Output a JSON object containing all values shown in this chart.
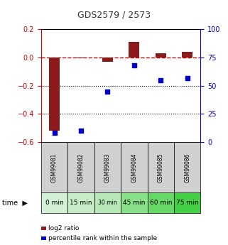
{
  "title": "GDS2579 / 2573",
  "samples": [
    "GSM99081",
    "GSM99082",
    "GSM99083",
    "GSM99084",
    "GSM99085",
    "GSM99086"
  ],
  "time_labels": [
    "0 min",
    "15 min",
    "30 min",
    "45 min",
    "60 min",
    "75 min"
  ],
  "log2_ratios": [
    -0.52,
    -0.005,
    -0.03,
    0.11,
    0.03,
    0.04
  ],
  "percentile_ranks": [
    8,
    10,
    45,
    68,
    55,
    57
  ],
  "ylim_left": [
    -0.6,
    0.2
  ],
  "ylim_right": [
    0,
    100
  ],
  "bar_color": "#8B1A1A",
  "dot_color": "#0000CD",
  "zero_line_color": "#CC0000",
  "grid_color": "black",
  "sample_bg_color": "#d0d0d0",
  "title_color": "#333333",
  "left_axis_color": "#CC0000",
  "right_axis_color": "#0000CD",
  "green_shades": [
    "#d4f0d4",
    "#c8ecc8",
    "#b8e8b8",
    "#88e088",
    "#66d866",
    "#44d044"
  ],
  "time_fontsizes": [
    6.5,
    6.5,
    5.5,
    6.5,
    6.5,
    6.5
  ]
}
